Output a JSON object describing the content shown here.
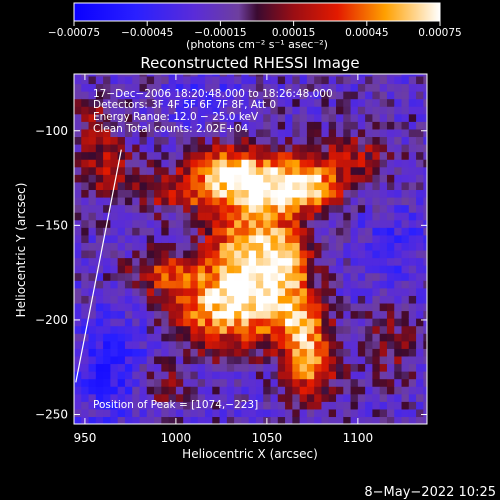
{
  "chart_data": {
    "type": "heatmap",
    "title": "Reconstructed RHESSI Image",
    "xlabel": "Heliocentric X (arcsec)",
    "ylabel": "Heliocentric Y (arcsec)",
    "xlim": [
      944,
      1138
    ],
    "ylim": [
      -255,
      -70
    ],
    "xticks": [
      950,
      1000,
      1050,
      1100
    ],
    "yticks": [
      -100,
      -150,
      -200,
      -250
    ],
    "xtick_labels": [
      "950",
      "1000",
      "1050",
      "1100"
    ],
    "ytick_labels": [
      "−100",
      "−150",
      "−200",
      "−250"
    ],
    "colorbar": {
      "range": [
        -0.00075,
        0.00075
      ],
      "ticks": [
        -0.00075,
        -0.00045,
        -0.00015,
        0.00015,
        0.00045,
        0.00075
      ],
      "tick_labels": [
        "−0.00075",
        "−0.00045",
        "−0.00015",
        "0.00015",
        "0.00045",
        "0.00075"
      ],
      "unit_label": "(photons cm⁻² s⁻¹ asec⁻²)"
    },
    "annotations": [
      "17−Dec−2006 18:20:48.000 to 18:26:48.000",
      "Detectors: 3F 4F 5F 6F 7F 8F, Att 0",
      "Energy Range: 12.0 − 25.0 keV",
      "Clean     Total counts: 2.02E+04"
    ],
    "peak_label": "Position of Peak = [1074,−223]",
    "peak": [
      1074,
      -223
    ],
    "limb_points": [
      [
        945,
        -233
      ],
      [
        970,
        -110
      ]
    ],
    "pixel_size_arcsec": 4,
    "sources": [
      {
        "x": 1052,
        "y": -128,
        "sx": 26,
        "sy": 10,
        "amp": 0.0006
      },
      {
        "x": 1030,
        "y": -118,
        "sx": 16,
        "sy": 10,
        "amp": 0.0004
      },
      {
        "x": 1072,
        "y": -128,
        "sx": 12,
        "sy": 10,
        "amp": 0.00045
      },
      {
        "x": 1040,
        "y": -160,
        "sx": 16,
        "sy": 22,
        "amp": 0.00075
      },
      {
        "x": 1028,
        "y": -193,
        "sx": 22,
        "sy": 15,
        "amp": 0.00075
      },
      {
        "x": 1062,
        "y": -170,
        "sx": 10,
        "sy": 14,
        "amp": 0.00055
      },
      {
        "x": 1074,
        "y": -223,
        "sx": 10,
        "sy": 13,
        "amp": 0.0007
      },
      {
        "x": 1068,
        "y": -200,
        "sx": 10,
        "sy": 10,
        "amp": 0.0005
      },
      {
        "x": 993,
        "y": -175,
        "sx": 14,
        "sy": 8,
        "amp": 0.0004
      },
      {
        "x": 1000,
        "y": -132,
        "sx": 18,
        "sy": 8,
        "amp": 0.00035
      },
      {
        "x": 962,
        "y": -118,
        "sx": 10,
        "sy": 12,
        "amp": 0.00035
      },
      {
        "x": 1100,
        "y": -112,
        "sx": 14,
        "sy": 10,
        "amp": 0.0003
      },
      {
        "x": 1118,
        "y": -210,
        "sx": 10,
        "sy": 16,
        "amp": 0.00025
      },
      {
        "x": 990,
        "y": -235,
        "sx": 10,
        "sy": 8,
        "amp": 0.0003
      },
      {
        "x": 955,
        "y": -95,
        "sx": 10,
        "sy": 10,
        "amp": 0.00025
      },
      {
        "x": 965,
        "y": -225,
        "sx": 14,
        "sy": 20,
        "amp": -0.00035
      },
      {
        "x": 1015,
        "y": -85,
        "sx": 14,
        "sy": 10,
        "amp": -0.0002
      },
      {
        "x": 1120,
        "y": -160,
        "sx": 14,
        "sy": 18,
        "amp": -0.0002
      }
    ]
  },
  "footer": {
    "date": "8−May−2022 10:25"
  }
}
